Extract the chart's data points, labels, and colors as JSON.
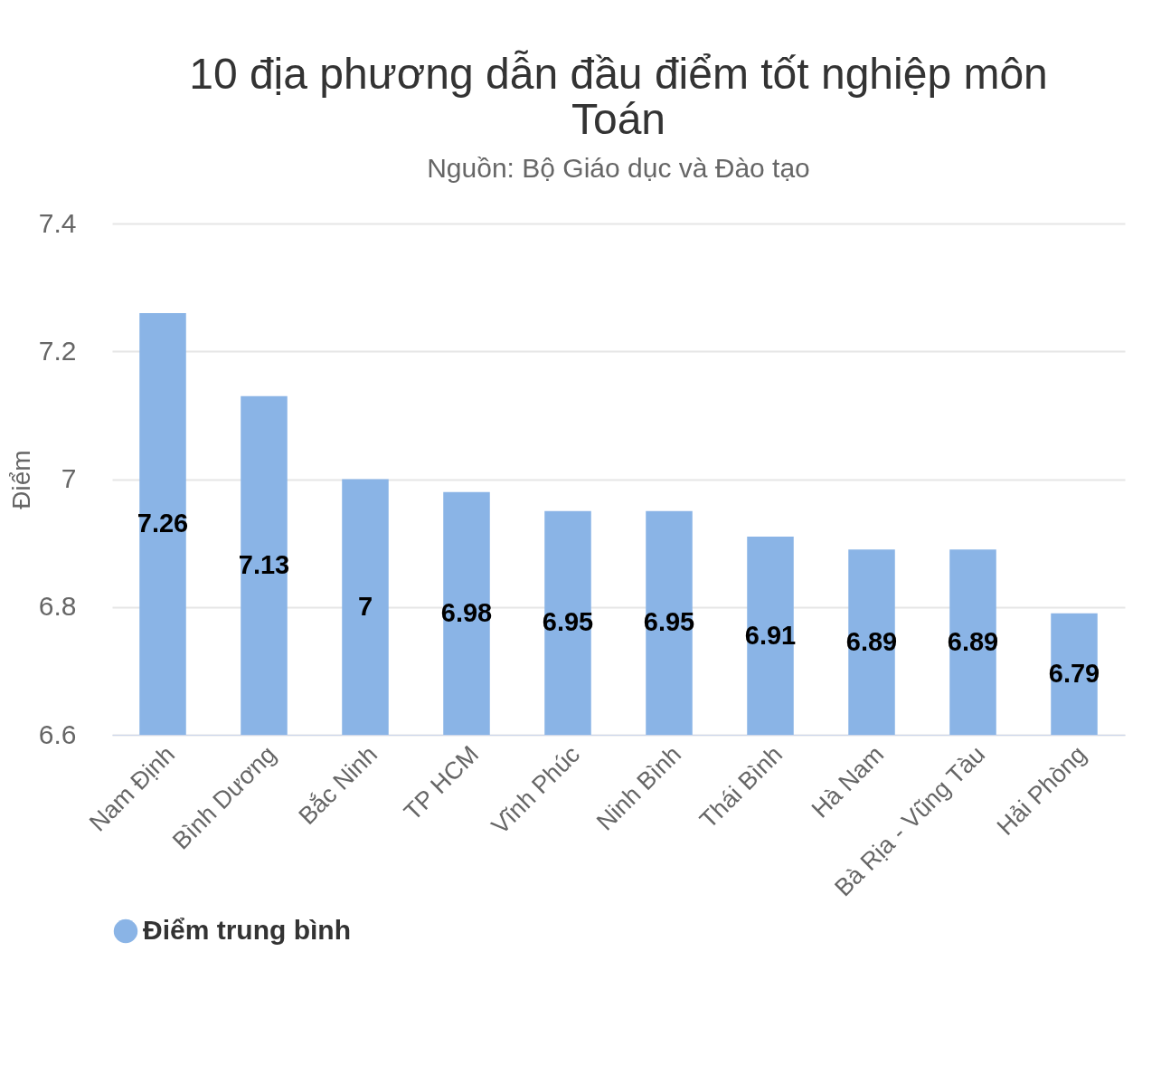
{
  "chart_data": {
    "type": "bar",
    "title": "10 địa phương dẫn đầu điểm tốt nghiệp môn Toán",
    "subtitle": "Nguồn: Bộ Giáo dục và Đào tạo",
    "ylabel": "Điểm",
    "categories": [
      "Nam Định",
      "Bình Dương",
      "Bắc Ninh",
      "TP HCM",
      "Vĩnh Phúc",
      "Ninh Bình",
      "Thái Bình",
      "Hà Nam",
      "Bà Rịa - Vũng Tàu",
      "Hải Phòng"
    ],
    "series": [
      {
        "name": "Điểm trung bình",
        "color": "#8ab4e6",
        "values": [
          7.26,
          7.13,
          7,
          6.98,
          6.95,
          6.95,
          6.91,
          6.89,
          6.89,
          6.79
        ]
      }
    ],
    "ylim": [
      6.6,
      7.4
    ],
    "yticks": [
      6.6,
      6.8,
      7,
      7.2,
      7.4
    ],
    "grid": "y",
    "legend": "bottom",
    "data_labels": true
  }
}
